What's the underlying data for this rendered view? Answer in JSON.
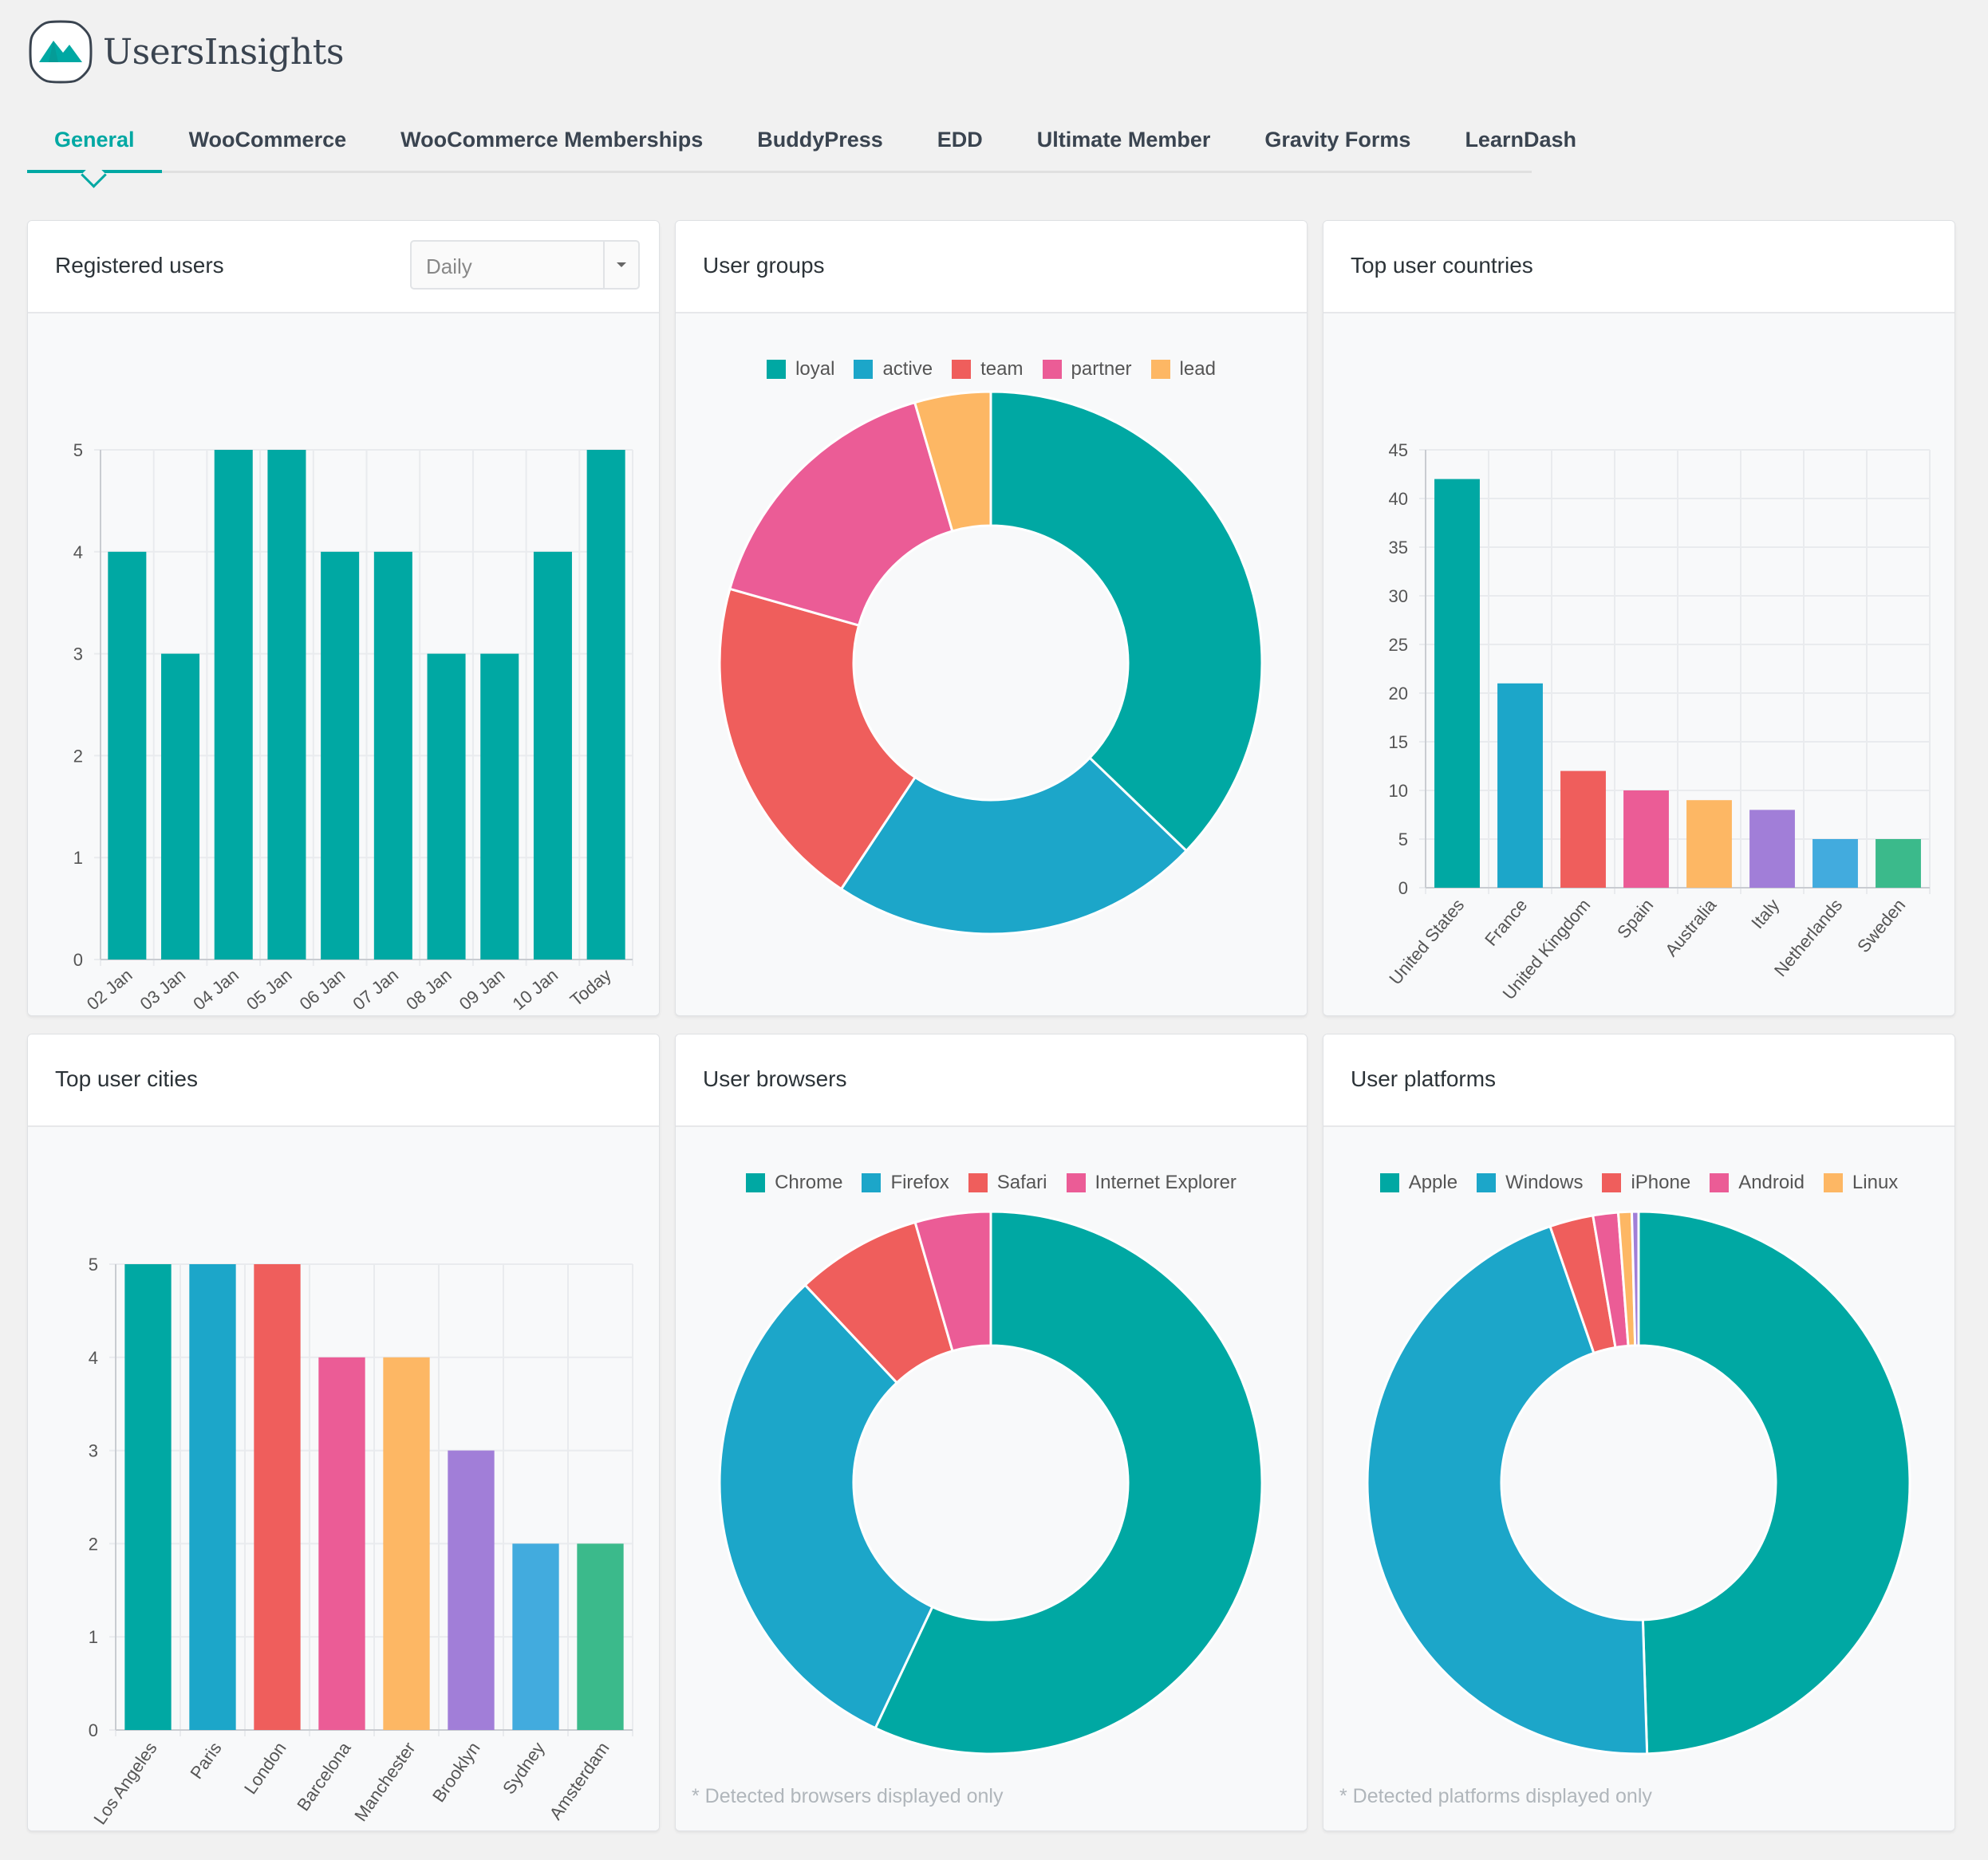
{
  "brand": {
    "name": "UsersInsights"
  },
  "tabs": [
    {
      "label": "General",
      "active": true
    },
    {
      "label": "WooCommerce",
      "active": false
    },
    {
      "label": "WooCommerce Memberships",
      "active": false
    },
    {
      "label": "BuddyPress",
      "active": false
    },
    {
      "label": "EDD",
      "active": false
    },
    {
      "label": "Ultimate Member",
      "active": false
    },
    {
      "label": "Gravity Forms",
      "active": false
    },
    {
      "label": "LearnDash",
      "active": false
    }
  ],
  "colors": {
    "accent": "#00a8a3",
    "palette": [
      "#00a8a3",
      "#1ca6c9",
      "#ef5e5c",
      "#eb5c96",
      "#fdb764",
      "#a17ed8",
      "#42abde",
      "#3bba8b"
    ]
  },
  "cards": {
    "registered": {
      "title": "Registered users",
      "period_select": "Daily"
    },
    "groups": {
      "title": "User groups"
    },
    "countries": {
      "title": "Top user countries"
    },
    "cities": {
      "title": "Top user cities"
    },
    "browsers": {
      "title": "User browsers",
      "footnote": "* Detected browsers displayed only"
    },
    "platforms": {
      "title": "User platforms",
      "footnote": "* Detected platforms displayed only"
    }
  },
  "chart_data": [
    {
      "id": "registered",
      "type": "bar",
      "categories": [
        "02 Jan",
        "03 Jan",
        "04 Jan",
        "05 Jan",
        "06 Jan",
        "07 Jan",
        "08 Jan",
        "09 Jan",
        "10 Jan",
        "Today"
      ],
      "values": [
        4,
        3,
        5,
        5,
        4,
        4,
        3,
        3,
        4,
        5
      ],
      "ylim": [
        0,
        5
      ],
      "yticks": [
        0,
        1,
        2,
        3,
        4,
        5
      ],
      "grid": true,
      "color": "#00a8a3"
    },
    {
      "id": "groups",
      "type": "pie",
      "donut": true,
      "legend": "top",
      "series": [
        {
          "name": "loyal",
          "value": 37,
          "color": "#00a8a3"
        },
        {
          "name": "active",
          "value": 22,
          "color": "#1ca6c9"
        },
        {
          "name": "team",
          "value": 20,
          "color": "#ef5e5c"
        },
        {
          "name": "partner",
          "value": 16,
          "color": "#eb5c96"
        },
        {
          "name": "lead",
          "value": 4.5,
          "color": "#fdb764"
        }
      ]
    },
    {
      "id": "countries",
      "type": "bar",
      "categories": [
        "United States",
        "France",
        "United Kingdom",
        "Spain",
        "Australia",
        "Italy",
        "Netherlands",
        "Sweden"
      ],
      "values": [
        42,
        21,
        12,
        10,
        9,
        8,
        5,
        5
      ],
      "colors": [
        "#00a8a3",
        "#1ca6c9",
        "#ef5e5c",
        "#eb5c96",
        "#fdb764",
        "#a17ed8",
        "#42abde",
        "#3bba8b"
      ],
      "ylim": [
        0,
        45
      ],
      "yticks": [
        0,
        5,
        10,
        15,
        20,
        25,
        30,
        35,
        40,
        45
      ],
      "grid": true
    },
    {
      "id": "cities",
      "type": "bar",
      "categories": [
        "Los Angeles",
        "Paris",
        "London",
        "Barcelona",
        "Manchester",
        "Brooklyn",
        "Sydney",
        "Amsterdam"
      ],
      "values": [
        5,
        5,
        5,
        4,
        4,
        3,
        2,
        2
      ],
      "colors": [
        "#00a8a3",
        "#1ca6c9",
        "#ef5e5c",
        "#eb5c96",
        "#fdb764",
        "#a17ed8",
        "#42abde",
        "#3bba8b"
      ],
      "ylim": [
        0,
        5
      ],
      "yticks": [
        0,
        1,
        2,
        3,
        4,
        5
      ],
      "grid": true
    },
    {
      "id": "browsers",
      "type": "pie",
      "donut": true,
      "legend": "top",
      "series": [
        {
          "name": "Chrome",
          "value": 57,
          "color": "#00a8a3"
        },
        {
          "name": "Firefox",
          "value": 31,
          "color": "#1ca6c9"
        },
        {
          "name": "Safari",
          "value": 7.5,
          "color": "#ef5e5c"
        },
        {
          "name": "Internet Explorer",
          "value": 4.5,
          "color": "#eb5c96"
        }
      ]
    },
    {
      "id": "platforms",
      "type": "pie",
      "donut": true,
      "legend": "top",
      "series": [
        {
          "name": "Apple",
          "value": 49.6,
          "color": "#00a8a3"
        },
        {
          "name": "Windows",
          "value": 45.3,
          "color": "#1ca6c9"
        },
        {
          "name": "iPhone",
          "value": 2.6,
          "color": "#ef5e5c"
        },
        {
          "name": "Android",
          "value": 1.5,
          "color": "#eb5c96"
        },
        {
          "name": "Linux",
          "value": 0.8,
          "color": "#fdb764"
        },
        {
          "name": "",
          "value": 0.4,
          "color": "#a17ed8"
        }
      ]
    }
  ]
}
